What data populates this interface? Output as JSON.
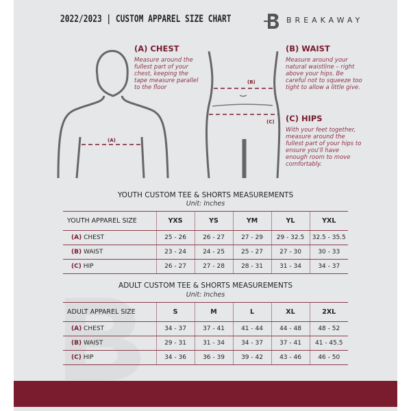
{
  "header": {
    "title": "2022/2023  |  CUSTOM APPAREL SIZE CHART",
    "brand": "BREAKAWAY"
  },
  "guide": {
    "chest": {
      "heading": "(A) CHEST",
      "text": "Measure around the fullest part of your chest, keeping the tape measure parallel to the floor",
      "marker": "(A)"
    },
    "waist": {
      "heading": "(B) WAIST",
      "text": "Measure around your natural waistline – right above your hips. Be careful not to squeeze too tight to allow a little give.",
      "marker": "(B)"
    },
    "hips": {
      "heading": "(C) HIPS",
      "text": "With your feet together, measure around the fullest part of your hips to ensure you'll have enough room to move comfortably.",
      "marker": "(C)"
    }
  },
  "youth": {
    "title": "YOUTH CUSTOM TEE & SHORTS MEASUREMENTS",
    "unit": "Unit: Inches",
    "header": [
      "YOUTH APPAREL SIZE",
      "YXS",
      "YS",
      "YM",
      "YL",
      "YXL"
    ],
    "rows": [
      {
        "letter": "(A)",
        "name": "CHEST",
        "values": [
          "25 - 26",
          "26 - 27",
          "27 - 29",
          "29 - 32.5",
          "32.5 - 35.5"
        ]
      },
      {
        "letter": "(B)",
        "name": "WAIST",
        "values": [
          "23 - 24",
          "24 - 25",
          "25 - 27",
          "27 - 30",
          "30 - 33"
        ]
      },
      {
        "letter": "(C)",
        "name": "HIP",
        "values": [
          "26 - 27",
          "27 - 28",
          "28 - 31",
          "31 - 34",
          "34 - 37"
        ]
      }
    ]
  },
  "adult": {
    "title": "ADULT CUSTOM TEE & SHORTS MEASUREMENTS",
    "unit": "Unit: Inches",
    "header": [
      "ADULT APPAREL SIZE",
      "S",
      "M",
      "L",
      "XL",
      "2XL"
    ],
    "rows": [
      {
        "letter": "(A)",
        "name": "CHEST",
        "values": [
          "34 - 37",
          "37 - 41",
          "41 - 44",
          "44 - 48",
          "48 - 52"
        ]
      },
      {
        "letter": "(B)",
        "name": "WAIST",
        "values": [
          "29 - 31",
          "31 - 34",
          "34 - 37",
          "37 - 41",
          "41 - 45.5"
        ]
      },
      {
        "letter": "(C)",
        "name": "HIP",
        "values": [
          "34 - 36",
          "36 - 39",
          "39 - 42",
          "43 - 46",
          "46 - 50"
        ]
      }
    ]
  },
  "colors": {
    "accent": "#7a1c2e",
    "panel": "#e6e7e9"
  }
}
